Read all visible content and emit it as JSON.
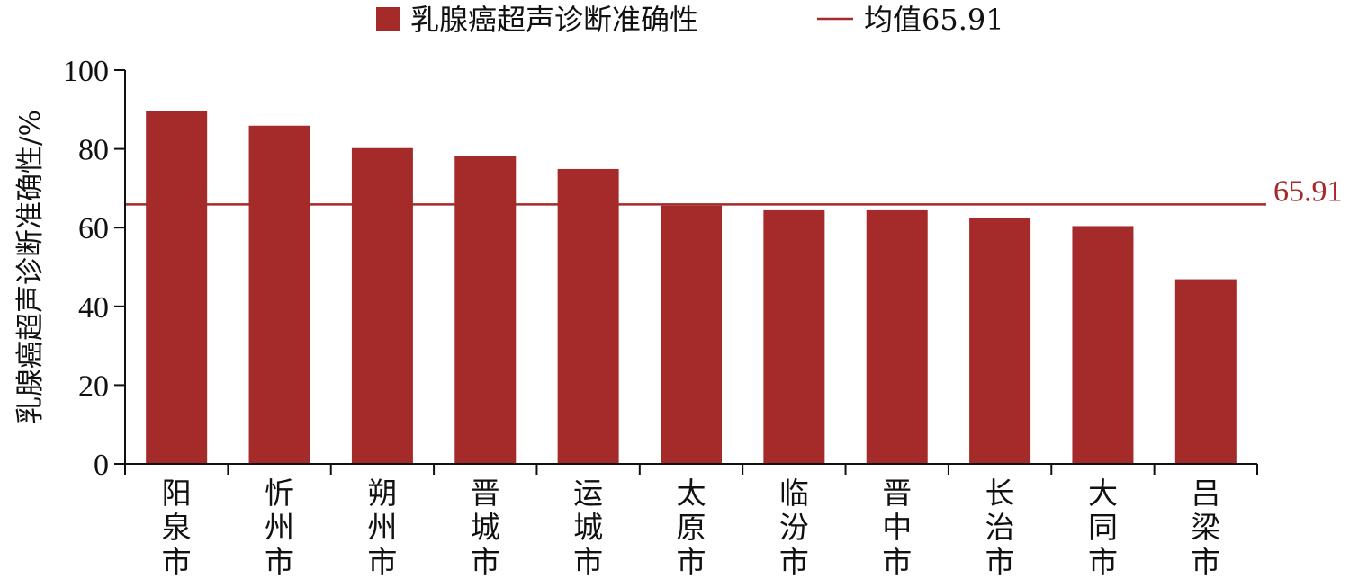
{
  "chart_data": {
    "type": "bar",
    "title": "",
    "xlabel": "",
    "ylabel": "乳腺癌超声诊断准确性/%",
    "ylim": [
      0,
      100
    ],
    "yticks": [
      "0",
      "20",
      "40",
      "60",
      "80",
      "100"
    ],
    "categories": [
      "阳泉市",
      "忻州市",
      "朔州市",
      "晋城市",
      "运城市",
      "太原市",
      "临汾市",
      "晋中市",
      "长治市",
      "大同市",
      "吕梁市"
    ],
    "series": [
      {
        "name": "乳腺癌超声诊断准确性",
        "values": [
          89.5,
          85.9,
          80.2,
          78.3,
          74.9,
          65.6,
          64.4,
          64.4,
          62.5,
          60.4,
          46.9
        ]
      }
    ],
    "reference_line": {
      "name": "均值65.91",
      "value": 65.91,
      "label": "65.91"
    },
    "legend": {
      "position": "top",
      "bar_label": "乳腺癌超声诊断准确性",
      "line_label": "均值65.91"
    },
    "grid": false,
    "colors": {
      "bar": "#A52A2A",
      "line": "#A52A2A",
      "axis": "#111111"
    }
  }
}
